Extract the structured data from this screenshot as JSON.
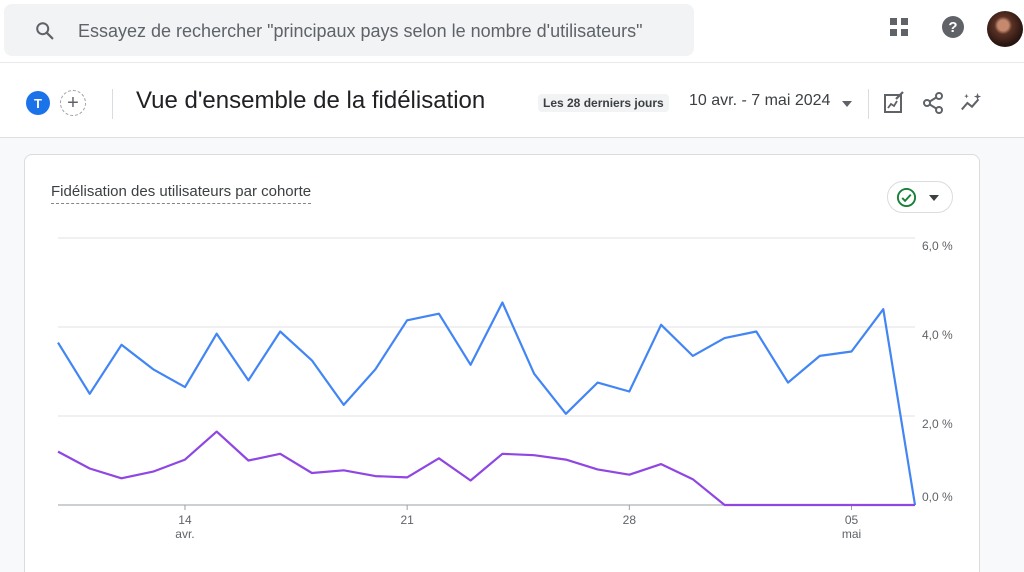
{
  "search": {
    "placeholder": "Essayez de rechercher \"principaux pays selon le nombre d'utilisateurs\""
  },
  "icons": {
    "search": "search-icon",
    "apps": "apps-grid-icon",
    "help": "help-icon",
    "edit": "edit-report-icon",
    "share": "share-icon",
    "insights": "insights-icon",
    "status": "check-circle-icon",
    "caret": "caret-down-icon"
  },
  "header": {
    "comparison_chip": "T",
    "add_comparison": "+",
    "title": "Vue d'ensemble de la fidélisation",
    "date_range_label": "Les 28 derniers jours",
    "date_range_value": "10 avr. - 7 mai 2024"
  },
  "card": {
    "title": "Fidélisation des utilisateurs par cohorte"
  },
  "colors": {
    "accent": "#1a73e8",
    "series_blue": "#4285f4",
    "series_purple": "#8f46e3",
    "status_ok": "#188038"
  },
  "chart_data": {
    "type": "line",
    "x": [
      "10 avr.",
      "11 avr.",
      "12 avr.",
      "13 avr.",
      "14 avr.",
      "15 avr.",
      "16 avr.",
      "17 avr.",
      "18 avr.",
      "19 avr.",
      "20 avr.",
      "21 avr.",
      "22 avr.",
      "23 avr.",
      "24 avr.",
      "25 avr.",
      "26 avr.",
      "27 avr.",
      "28 avr.",
      "29 avr.",
      "30 avr.",
      "1 mai",
      "2 mai",
      "3 mai",
      "4 mai",
      "5 mai",
      "6 mai",
      "7 mai"
    ],
    "x_ticks": [
      {
        "index": 4,
        "label": "14",
        "sublabel": "avr."
      },
      {
        "index": 11,
        "label": "21",
        "sublabel": ""
      },
      {
        "index": 18,
        "label": "28",
        "sublabel": ""
      },
      {
        "index": 25,
        "label": "05",
        "sublabel": "mai"
      }
    ],
    "y_ticks": [
      "6,0 %",
      "4,0 %",
      "2,0 %",
      "0,0 %"
    ],
    "ylim": [
      0,
      6
    ],
    "grid": true,
    "series": [
      {
        "color": "#4285f4",
        "values": [
          3.65,
          2.5,
          3.6,
          3.05,
          2.65,
          3.85,
          2.8,
          3.9,
          3.25,
          2.25,
          3.05,
          4.15,
          4.3,
          3.15,
          4.55,
          2.95,
          2.05,
          2.75,
          2.55,
          4.05,
          3.35,
          3.75,
          3.9,
          2.75,
          3.35,
          3.45,
          4.4,
          0.0
        ]
      },
      {
        "color": "#8f46e3",
        "values": [
          1.2,
          0.82,
          0.6,
          0.75,
          1.02,
          1.65,
          1.0,
          1.15,
          0.72,
          0.78,
          0.65,
          0.62,
          1.05,
          0.55,
          1.15,
          1.12,
          1.02,
          0.8,
          0.68,
          0.92,
          0.58,
          0.0,
          0.0,
          0.0,
          0.0,
          0.0,
          0.0,
          0.0
        ]
      }
    ]
  }
}
